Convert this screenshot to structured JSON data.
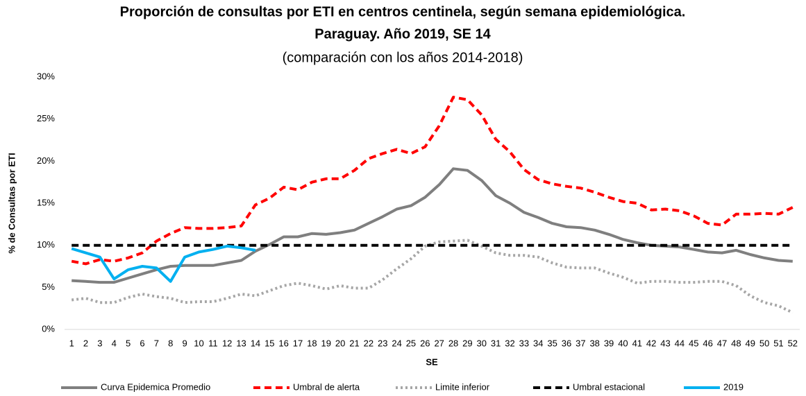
{
  "chart_data": {
    "type": "line",
    "title": [
      "Proporción de consultas por ETI en centros centinela, según semana epidemiológica.",
      "Paraguay.  Año 2019, SE 14"
    ],
    "subtitle": "(comparación con los años 2014-2018)",
    "ylabel": "% de Consultas por ETI",
    "xlabel": "SE",
    "categories": [
      1,
      2,
      3,
      4,
      5,
      6,
      7,
      8,
      9,
      10,
      11,
      12,
      13,
      14,
      15,
      16,
      17,
      18,
      19,
      20,
      21,
      22,
      23,
      24,
      25,
      26,
      27,
      28,
      29,
      30,
      31,
      32,
      33,
      34,
      35,
      36,
      37,
      38,
      39,
      40,
      41,
      42,
      43,
      44,
      45,
      46,
      47,
      48,
      49,
      50,
      51,
      52
    ],
    "ylim": [
      0,
      30
    ],
    "yticks": [
      {
        "value": 0,
        "label": "0%"
      },
      {
        "value": 5,
        "label": "5%"
      },
      {
        "value": 10,
        "label": "10%"
      },
      {
        "value": 15,
        "label": "15%"
      },
      {
        "value": 20,
        "label": "20%"
      },
      {
        "value": 25,
        "label": "25%"
      },
      {
        "value": 30,
        "label": "30%"
      }
    ],
    "grid": false,
    "legend": "bottom",
    "series": [
      {
        "name": "Curva Epidemica Promedio",
        "color": "#7f7f7f",
        "dash": "solid",
        "values": [
          5.8,
          5.7,
          5.6,
          5.6,
          6.1,
          6.6,
          7.1,
          7.5,
          7.6,
          7.6,
          7.6,
          7.9,
          8.2,
          9.3,
          10.1,
          11.0,
          11.0,
          11.4,
          11.3,
          11.5,
          11.8,
          12.6,
          13.4,
          14.3,
          14.7,
          15.7,
          17.2,
          19.1,
          18.9,
          17.7,
          15.9,
          15.0,
          13.9,
          13.3,
          12.6,
          12.2,
          12.1,
          11.8,
          11.3,
          10.7,
          10.3,
          10.0,
          9.9,
          9.8,
          9.5,
          9.2,
          9.1,
          9.4,
          8.9,
          8.5,
          8.2,
          8.1
        ]
      },
      {
        "name": "Umbral de alerta",
        "color": "#ff0000",
        "dash": "dashed",
        "values": [
          8.1,
          7.8,
          8.3,
          8.1,
          8.5,
          9.1,
          10.5,
          11.4,
          12.1,
          12.0,
          12.0,
          12.1,
          12.3,
          14.8,
          15.6,
          16.9,
          16.6,
          17.5,
          17.9,
          17.9,
          18.9,
          20.3,
          20.9,
          21.4,
          20.9,
          21.7,
          24.2,
          27.6,
          27.3,
          25.5,
          22.6,
          21.1,
          19.0,
          17.8,
          17.3,
          17.0,
          16.8,
          16.3,
          15.7,
          15.2,
          15.0,
          14.2,
          14.3,
          14.1,
          13.5,
          12.6,
          12.4,
          13.7,
          13.7,
          13.8,
          13.7,
          14.5
        ]
      },
      {
        "name": "Limite inferior",
        "color": "#a6a6a6",
        "dash": "dotted",
        "values": [
          3.5,
          3.7,
          3.2,
          3.2,
          3.8,
          4.2,
          3.9,
          3.7,
          3.2,
          3.3,
          3.3,
          3.7,
          4.2,
          4.0,
          4.6,
          5.2,
          5.5,
          5.2,
          4.8,
          5.2,
          4.9,
          4.9,
          5.9,
          7.2,
          8.4,
          9.9,
          10.4,
          10.5,
          10.6,
          9.9,
          9.1,
          8.8,
          8.8,
          8.6,
          7.9,
          7.4,
          7.3,
          7.3,
          6.7,
          6.2,
          5.5,
          5.7,
          5.7,
          5.6,
          5.6,
          5.7,
          5.7,
          5.2,
          4.0,
          3.2,
          2.8,
          2.0
        ]
      },
      {
        "name": "Umbral estacional",
        "color": "#000000",
        "dash": "dashed",
        "values": [
          10,
          10,
          10,
          10,
          10,
          10,
          10,
          10,
          10,
          10,
          10,
          10,
          10,
          10,
          10,
          10,
          10,
          10,
          10,
          10,
          10,
          10,
          10,
          10,
          10,
          10,
          10,
          10,
          10,
          10,
          10,
          10,
          10,
          10,
          10,
          10,
          10,
          10,
          10,
          10,
          10,
          10,
          10,
          10,
          10,
          10,
          10,
          10,
          10,
          10,
          10,
          10
        ]
      },
      {
        "name": "2019",
        "color": "#00b0f0",
        "dash": "solid",
        "values": [
          9.6,
          9.1,
          8.6,
          6.0,
          7.1,
          7.5,
          7.3,
          5.7,
          8.6,
          9.2,
          9.5,
          9.9,
          9.7,
          9.4,
          null,
          null,
          null,
          null,
          null,
          null,
          null,
          null,
          null,
          null,
          null,
          null,
          null,
          null,
          null,
          null,
          null,
          null,
          null,
          null,
          null,
          null,
          null,
          null,
          null,
          null,
          null,
          null,
          null,
          null,
          null,
          null,
          null,
          null,
          null,
          null,
          null,
          null
        ]
      }
    ]
  }
}
